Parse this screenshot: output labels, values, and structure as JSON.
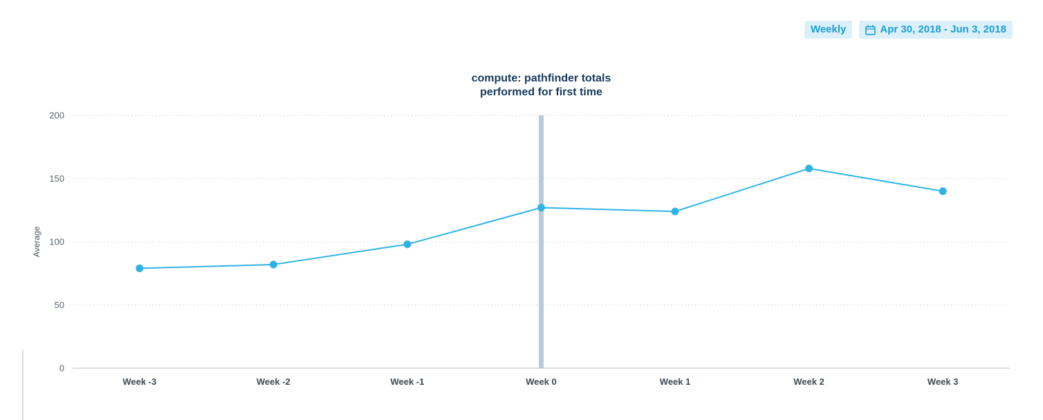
{
  "header": {
    "granularity_label": "Weekly",
    "date_range": "Apr 30, 2018 - Jun 3, 2018"
  },
  "chart_data": {
    "type": "line",
    "title_lines": [
      "compute: pathfinder totals",
      "performed for first time"
    ],
    "categories": [
      "Week -3",
      "Week -2",
      "Week -1",
      "Week 0",
      "Week 1",
      "Week 2",
      "Week 3"
    ],
    "series": [
      {
        "name": "Average",
        "values": [
          79,
          82,
          98,
          127,
          124,
          158,
          140
        ]
      }
    ],
    "ylabel": "Average",
    "ylim": [
      0,
      200
    ],
    "yticks": [
      0,
      50,
      100,
      150,
      200
    ],
    "grid": "horizontal-dotted",
    "legend": "none",
    "highlight_category": "Week 0",
    "line_color": "#2fb3e3",
    "highlight_color": "#b7ccd9",
    "axis_color": "#b6bcc1",
    "grid_color": "#c9ced2"
  }
}
